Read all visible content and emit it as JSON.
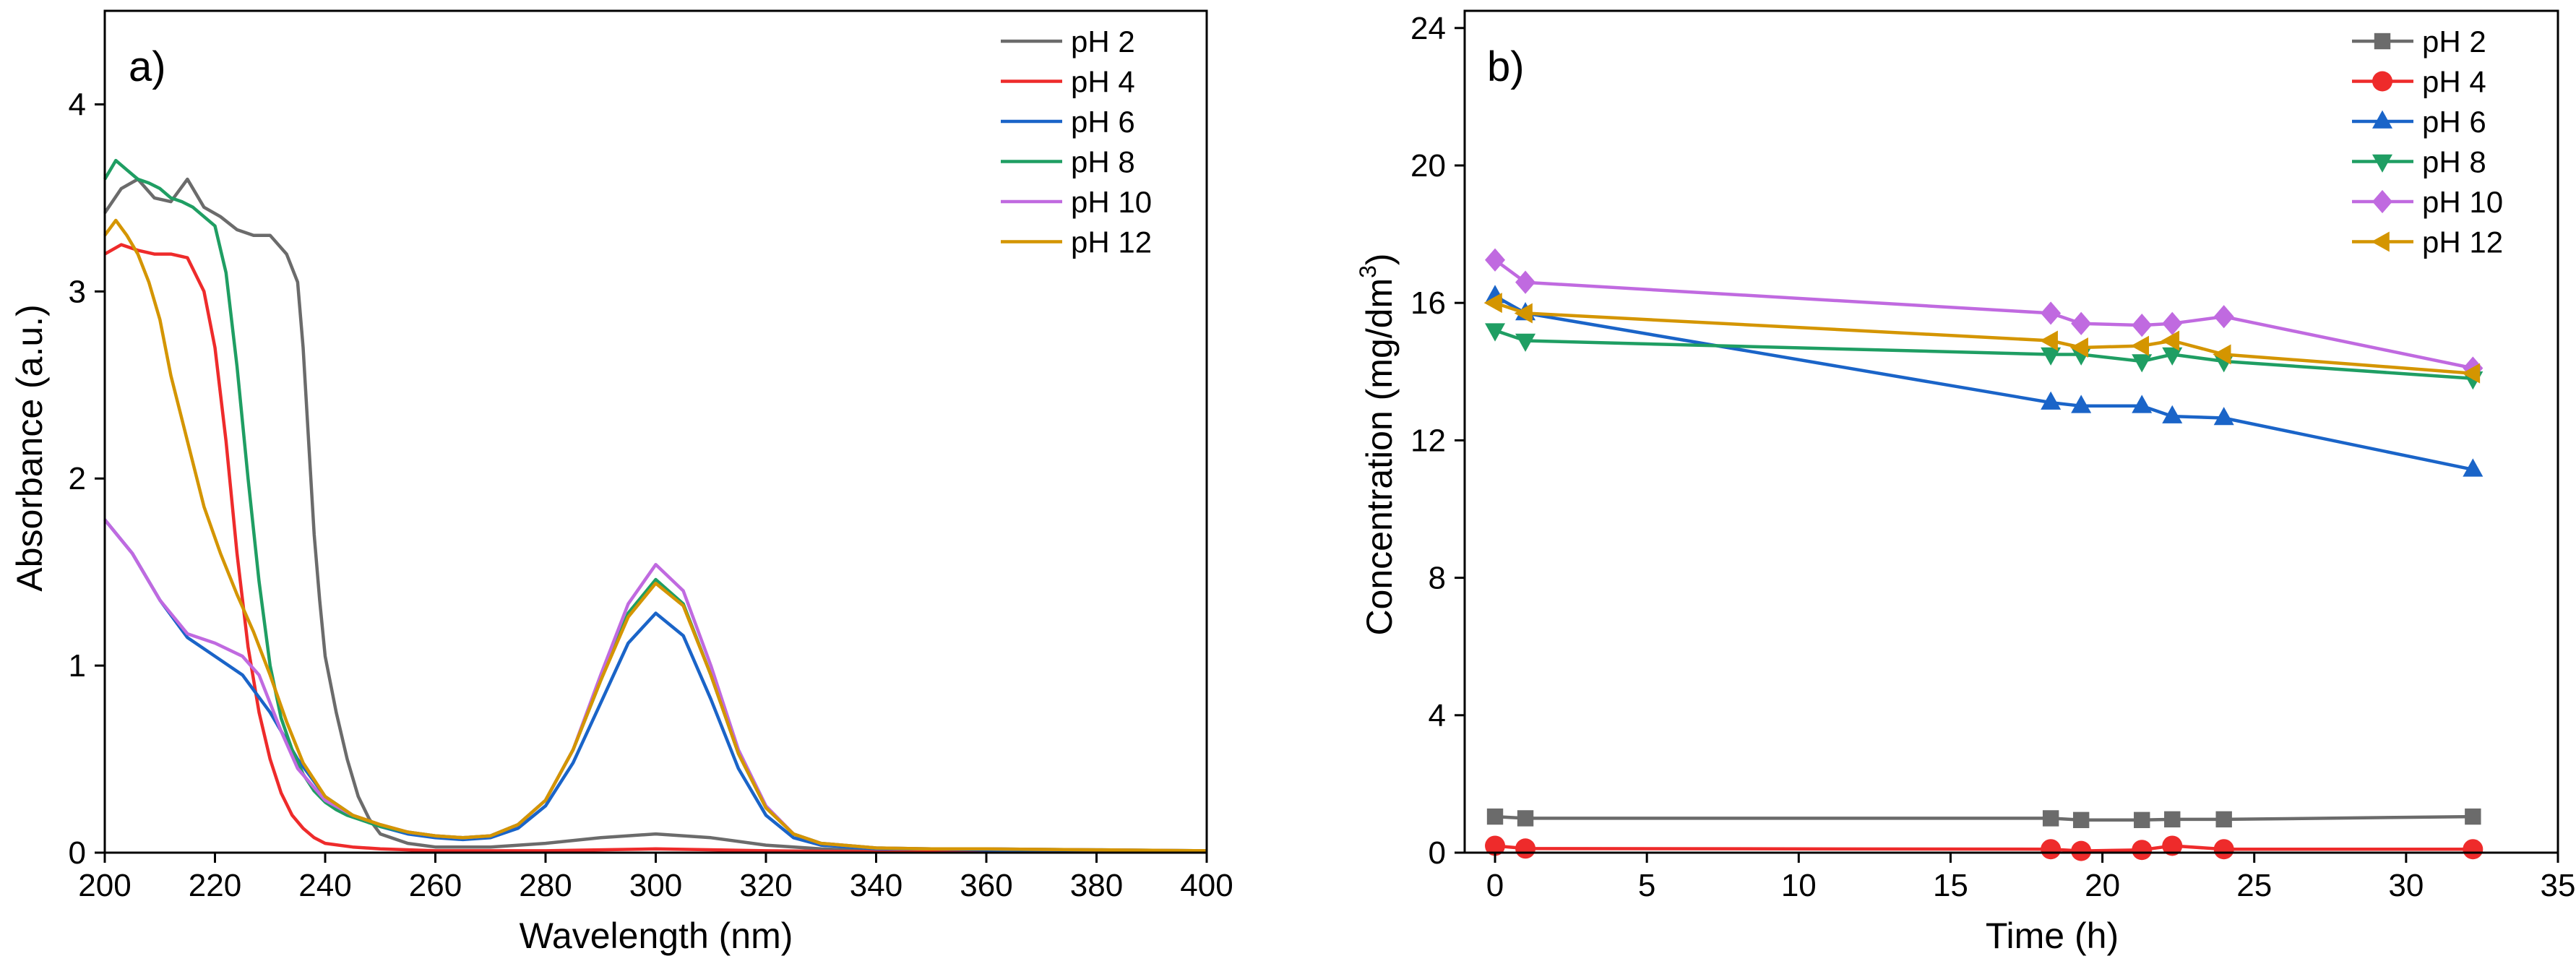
{
  "chart_data": [
    {
      "type": "line",
      "panel_label": "a)",
      "xlabel": "Wavelength (nm)",
      "ylabel": "Absorbance (a.u.)",
      "xlim": [
        200,
        400
      ],
      "ylim": [
        0,
        4.5
      ],
      "xticks": [
        200,
        220,
        240,
        260,
        280,
        300,
        320,
        340,
        360,
        380,
        400
      ],
      "yticks": [
        0,
        1,
        2,
        3,
        4
      ],
      "grid": false,
      "legend": "top-right",
      "series": [
        {
          "name": "pH 2",
          "color": "#6b6b6b",
          "x": [
            200,
            203,
            206,
            209,
            212,
            215,
            218,
            221,
            224,
            227,
            230,
            233,
            235,
            236,
            237,
            238,
            239,
            240,
            242,
            244,
            246,
            248,
            250,
            255,
            260,
            265,
            270,
            280,
            290,
            300,
            310,
            320,
            330,
            340,
            360,
            380,
            400
          ],
          "y": [
            3.42,
            3.55,
            3.6,
            3.5,
            3.48,
            3.6,
            3.45,
            3.4,
            3.33,
            3.3,
            3.3,
            3.2,
            3.05,
            2.7,
            2.2,
            1.7,
            1.35,
            1.05,
            0.75,
            0.5,
            0.3,
            0.18,
            0.1,
            0.05,
            0.03,
            0.03,
            0.03,
            0.05,
            0.08,
            0.1,
            0.08,
            0.04,
            0.02,
            0.01,
            0.01,
            0.005,
            0.005
          ]
        },
        {
          "name": "pH 4",
          "color": "#ee2b2b",
          "x": [
            200,
            203,
            206,
            209,
            212,
            215,
            218,
            220,
            222,
            224,
            226,
            228,
            230,
            232,
            234,
            236,
            238,
            240,
            245,
            250,
            260,
            270,
            280,
            300,
            320,
            340,
            360,
            380,
            400
          ],
          "y": [
            3.2,
            3.25,
            3.22,
            3.2,
            3.2,
            3.18,
            3.0,
            2.7,
            2.2,
            1.6,
            1.1,
            0.75,
            0.5,
            0.32,
            0.2,
            0.13,
            0.08,
            0.05,
            0.03,
            0.02,
            0.01,
            0.01,
            0.01,
            0.02,
            0.01,
            0.005,
            0.005,
            0.005,
            0.005
          ]
        },
        {
          "name": "pH 6",
          "color": "#1a64c8",
          "x": [
            200,
            205,
            210,
            215,
            220,
            225,
            230,
            235,
            240,
            245,
            250,
            255,
            260,
            265,
            270,
            275,
            280,
            285,
            290,
            295,
            300,
            305,
            310,
            315,
            320,
            325,
            330,
            340,
            350,
            360,
            380,
            400
          ],
          "y": [
            1.78,
            1.6,
            1.35,
            1.15,
            1.05,
            0.95,
            0.75,
            0.5,
            0.3,
            0.2,
            0.14,
            0.1,
            0.08,
            0.07,
            0.08,
            0.13,
            0.25,
            0.48,
            0.8,
            1.12,
            1.28,
            1.16,
            0.82,
            0.45,
            0.2,
            0.08,
            0.04,
            0.02,
            0.02,
            0.015,
            0.01,
            0.01
          ]
        },
        {
          "name": "pH 8",
          "color": "#1f9e63",
          "x": [
            200,
            202,
            204,
            206,
            208,
            210,
            212,
            214,
            216,
            218,
            220,
            222,
            224,
            226,
            228,
            230,
            232,
            234,
            236,
            238,
            240,
            242,
            244,
            246,
            248,
            250,
            255,
            260,
            265,
            270,
            275,
            280,
            285,
            290,
            295,
            300,
            305,
            310,
            315,
            320,
            325,
            330,
            340,
            350,
            360,
            380,
            400
          ],
          "y": [
            3.6,
            3.7,
            3.65,
            3.6,
            3.58,
            3.55,
            3.5,
            3.48,
            3.45,
            3.4,
            3.35,
            3.1,
            2.6,
            2.0,
            1.45,
            1.0,
            0.72,
            0.55,
            0.42,
            0.33,
            0.27,
            0.23,
            0.2,
            0.18,
            0.16,
            0.14,
            0.11,
            0.09,
            0.08,
            0.09,
            0.15,
            0.28,
            0.55,
            0.92,
            1.28,
            1.46,
            1.33,
            0.95,
            0.53,
            0.24,
            0.1,
            0.05,
            0.025,
            0.02,
            0.02,
            0.015,
            0.01
          ]
        },
        {
          "name": "pH 10",
          "color": "#c06ae0",
          "x": [
            200,
            205,
            210,
            215,
            220,
            225,
            228,
            230,
            232,
            235,
            240,
            245,
            250,
            255,
            260,
            265,
            270,
            275,
            280,
            285,
            290,
            295,
            300,
            305,
            310,
            315,
            320,
            325,
            330,
            340,
            350,
            360,
            380,
            400
          ],
          "y": [
            1.78,
            1.6,
            1.35,
            1.17,
            1.12,
            1.05,
            0.95,
            0.8,
            0.65,
            0.45,
            0.28,
            0.2,
            0.15,
            0.11,
            0.09,
            0.08,
            0.09,
            0.15,
            0.28,
            0.55,
            0.95,
            1.33,
            1.54,
            1.4,
            1.0,
            0.55,
            0.25,
            0.1,
            0.05,
            0.025,
            0.02,
            0.02,
            0.015,
            0.01
          ]
        },
        {
          "name": "pH 12",
          "color": "#d49500",
          "x": [
            200,
            202,
            204,
            206,
            208,
            210,
            212,
            215,
            218,
            221,
            224,
            227,
            230,
            233,
            236,
            240,
            245,
            250,
            255,
            260,
            265,
            270,
            275,
            280,
            285,
            290,
            295,
            300,
            305,
            310,
            315,
            320,
            325,
            330,
            340,
            350,
            360,
            380,
            400
          ],
          "y": [
            3.3,
            3.38,
            3.3,
            3.2,
            3.05,
            2.85,
            2.55,
            2.2,
            1.85,
            1.6,
            1.38,
            1.18,
            0.95,
            0.7,
            0.48,
            0.3,
            0.2,
            0.15,
            0.11,
            0.09,
            0.08,
            0.09,
            0.15,
            0.28,
            0.55,
            0.92,
            1.26,
            1.44,
            1.32,
            0.95,
            0.53,
            0.24,
            0.1,
            0.05,
            0.025,
            0.02,
            0.02,
            0.015,
            0.01
          ]
        }
      ]
    },
    {
      "type": "line",
      "panel_label": "b)",
      "xlabel": "Time (h)",
      "ylabel_main": "Concentration (mg/dm",
      "ylabel_sup": "3",
      "ylabel_end": ")",
      "xlim": [
        -1,
        35
      ],
      "ylim": [
        0,
        24.5
      ],
      "xticks": [
        0,
        5,
        10,
        15,
        20,
        25,
        30,
        35
      ],
      "yticks": [
        0,
        4,
        8,
        12,
        16,
        20,
        24
      ],
      "grid": false,
      "legend": "top-right",
      "series": [
        {
          "name": "pH 2",
          "color": "#6b6b6b",
          "marker": "square",
          "x": [
            0,
            1,
            18.3,
            19.3,
            21.3,
            22.3,
            24,
            32.2
          ],
          "y": [
            1.05,
            1.0,
            1.0,
            0.95,
            0.95,
            0.97,
            0.97,
            1.05
          ]
        },
        {
          "name": "pH 4",
          "color": "#ee2b2b",
          "marker": "circle",
          "x": [
            0,
            1,
            18.3,
            19.3,
            21.3,
            22.3,
            24,
            32.2
          ],
          "y": [
            0.2,
            0.12,
            0.1,
            0.05,
            0.08,
            0.2,
            0.1,
            0.1
          ]
        },
        {
          "name": "pH 6",
          "color": "#1a64c8",
          "marker": "triangle-up",
          "x": [
            0,
            1,
            18.3,
            19.3,
            21.3,
            22.3,
            24,
            32.2
          ],
          "y": [
            16.2,
            15.7,
            13.1,
            13.0,
            13.0,
            12.7,
            12.65,
            11.15
          ]
        },
        {
          "name": "pH 8",
          "color": "#1f9e63",
          "marker": "triangle-down",
          "x": [
            0,
            1,
            18.3,
            19.3,
            21.3,
            22.3,
            24,
            32.2
          ],
          "y": [
            15.2,
            14.9,
            14.5,
            14.5,
            14.3,
            14.5,
            14.3,
            13.8
          ]
        },
        {
          "name": "pH 10",
          "color": "#c06ae0",
          "marker": "diamond",
          "x": [
            0,
            1,
            18.3,
            19.3,
            21.3,
            22.3,
            24,
            32.2
          ],
          "y": [
            17.25,
            16.6,
            15.7,
            15.4,
            15.35,
            15.4,
            15.6,
            14.1
          ]
        },
        {
          "name": "pH 12",
          "color": "#d49500",
          "marker": "triangle-left",
          "x": [
            0,
            1,
            18.3,
            19.3,
            21.3,
            22.3,
            24,
            32.2
          ],
          "y": [
            16.0,
            15.7,
            14.9,
            14.7,
            14.75,
            14.9,
            14.5,
            13.95
          ]
        }
      ]
    }
  ]
}
